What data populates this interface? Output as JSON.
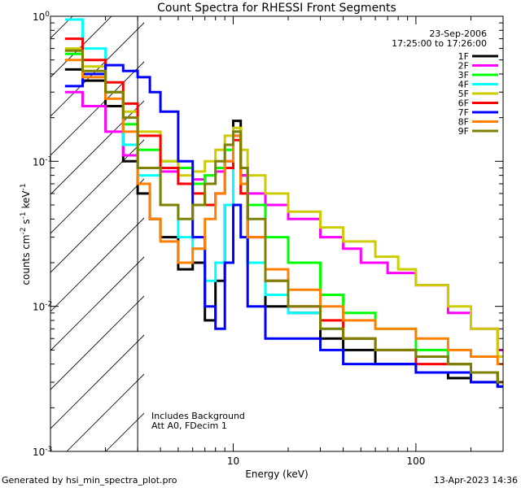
{
  "chart_data": {
    "type": "line",
    "title": "Count Spectra for RHESSI Front Segments",
    "xlabel": "Energy (keV)",
    "ylabel": "counts cm-2 s-1 keV-1",
    "xscale": "log",
    "yscale": "log",
    "xlim": [
      1.0,
      300.0
    ],
    "ylim": [
      0.001,
      1.0
    ],
    "x_ticks": [
      {
        "value": 10,
        "label": "10"
      },
      {
        "value": 100,
        "label": "100"
      }
    ],
    "y_ticks": [
      {
        "value": 1,
        "base": "10",
        "exp": "0"
      },
      {
        "value": 0.1,
        "base": "10",
        "exp": "-1"
      },
      {
        "value": 0.01,
        "base": "10",
        "exp": "-2"
      },
      {
        "value": 0.001,
        "base": "10",
        "exp": "-3"
      }
    ],
    "date": "23-Sep-2006",
    "time_range": "17:25:00 to 17:26:00",
    "annotations": [
      "Includes Background",
      "Att A0, FDecim 1"
    ],
    "shaded_region": {
      "from": 1.0,
      "to": 3.0,
      "style": "diagonal hatching"
    },
    "series": [
      {
        "name": "1F",
        "color": "#000000",
        "points": [
          [
            1.2,
            0.43
          ],
          [
            1.5,
            0.36
          ],
          [
            2,
            0.24
          ],
          [
            2.5,
            0.1
          ],
          [
            3,
            0.06
          ],
          [
            3.5,
            0.04
          ],
          [
            4,
            0.03
          ],
          [
            5,
            0.018
          ],
          [
            6,
            0.02
          ],
          [
            7,
            0.008
          ],
          [
            8,
            0.015
          ],
          [
            9,
            0.05
          ],
          [
            10,
            0.19
          ],
          [
            11,
            0.08
          ],
          [
            12,
            0.02
          ],
          [
            15,
            0.01
          ],
          [
            20,
            0.009
          ],
          [
            30,
            0.006
          ],
          [
            40,
            0.005
          ],
          [
            60,
            0.004
          ],
          [
            80,
            0.004
          ],
          [
            100,
            0.0035
          ],
          [
            150,
            0.0032
          ],
          [
            200,
            0.003
          ],
          [
            280,
            0.0028
          ]
        ]
      },
      {
        "name": "2F",
        "color": "#ff00ff",
        "points": [
          [
            1.2,
            0.3
          ],
          [
            1.5,
            0.24
          ],
          [
            2,
            0.16
          ],
          [
            2.5,
            0.11
          ],
          [
            3,
            0.09
          ],
          [
            4,
            0.085
          ],
          [
            5,
            0.07
          ],
          [
            6,
            0.075
          ],
          [
            7,
            0.08
          ],
          [
            8,
            0.085
          ],
          [
            9,
            0.1
          ],
          [
            10,
            0.15
          ],
          [
            11,
            0.08
          ],
          [
            12,
            0.06
          ],
          [
            15,
            0.05
          ],
          [
            20,
            0.04
          ],
          [
            30,
            0.03
          ],
          [
            40,
            0.025
          ],
          [
            50,
            0.02
          ],
          [
            70,
            0.017
          ],
          [
            100,
            0.014
          ],
          [
            150,
            0.009
          ],
          [
            200,
            0.007
          ],
          [
            280,
            0.005
          ]
        ]
      },
      {
        "name": "3F",
        "color": "#00ff00",
        "points": [
          [
            1.2,
            0.55
          ],
          [
            1.5,
            0.4
          ],
          [
            2,
            0.3
          ],
          [
            2.5,
            0.18
          ],
          [
            3,
            0.12
          ],
          [
            4,
            0.1
          ],
          [
            5,
            0.09
          ],
          [
            6,
            0.07
          ],
          [
            7,
            0.08
          ],
          [
            8,
            0.09
          ],
          [
            9,
            0.12
          ],
          [
            10,
            0.16
          ],
          [
            11,
            0.09
          ],
          [
            12,
            0.05
          ],
          [
            15,
            0.03
          ],
          [
            20,
            0.02
          ],
          [
            30,
            0.012
          ],
          [
            40,
            0.009
          ],
          [
            60,
            0.007
          ],
          [
            100,
            0.005
          ],
          [
            150,
            0.004
          ],
          [
            200,
            0.0035
          ],
          [
            280,
            0.003
          ]
        ]
      },
      {
        "name": "4F",
        "color": "#00ffff",
        "points": [
          [
            1.2,
            0.95
          ],
          [
            1.5,
            0.6
          ],
          [
            2,
            0.3
          ],
          [
            2.5,
            0.13
          ],
          [
            3,
            0.08
          ],
          [
            4,
            0.05
          ],
          [
            5,
            0.03
          ],
          [
            6,
            0.025
          ],
          [
            7,
            0.015
          ],
          [
            8,
            0.02
          ],
          [
            9,
            0.05
          ],
          [
            10,
            0.16
          ],
          [
            11,
            0.06
          ],
          [
            12,
            0.02
          ],
          [
            15,
            0.012
          ],
          [
            20,
            0.009
          ],
          [
            30,
            0.007
          ],
          [
            40,
            0.006
          ],
          [
            60,
            0.005
          ],
          [
            100,
            0.0045
          ],
          [
            150,
            0.004
          ],
          [
            200,
            0.0035
          ],
          [
            280,
            0.003
          ]
        ]
      },
      {
        "name": "5F",
        "color": "#cccc00",
        "points": [
          [
            1.2,
            0.6
          ],
          [
            1.5,
            0.45
          ],
          [
            2,
            0.3
          ],
          [
            2.5,
            0.22
          ],
          [
            3,
            0.16
          ],
          [
            4,
            0.1
          ],
          [
            5,
            0.08
          ],
          [
            6,
            0.085
          ],
          [
            7,
            0.1
          ],
          [
            8,
            0.12
          ],
          [
            9,
            0.15
          ],
          [
            10,
            0.17
          ],
          [
            11,
            0.12
          ],
          [
            12,
            0.08
          ],
          [
            15,
            0.06
          ],
          [
            20,
            0.045
          ],
          [
            30,
            0.035
          ],
          [
            40,
            0.028
          ],
          [
            60,
            0.022
          ],
          [
            80,
            0.018
          ],
          [
            100,
            0.014
          ],
          [
            150,
            0.01
          ],
          [
            200,
            0.007
          ],
          [
            280,
            0.0045
          ]
        ]
      },
      {
        "name": "6F",
        "color": "#ff0000",
        "points": [
          [
            1.2,
            0.7
          ],
          [
            1.5,
            0.5
          ],
          [
            2,
            0.35
          ],
          [
            2.5,
            0.25
          ],
          [
            3,
            0.15
          ],
          [
            4,
            0.09
          ],
          [
            5,
            0.07
          ],
          [
            6,
            0.06
          ],
          [
            7,
            0.05
          ],
          [
            8,
            0.06
          ],
          [
            9,
            0.09
          ],
          [
            10,
            0.14
          ],
          [
            11,
            0.06
          ],
          [
            12,
            0.03
          ],
          [
            15,
            0.015
          ],
          [
            20,
            0.01
          ],
          [
            30,
            0.008
          ],
          [
            40,
            0.006
          ],
          [
            60,
            0.005
          ],
          [
            100,
            0.004
          ],
          [
            150,
            0.004
          ],
          [
            200,
            0.0035
          ],
          [
            280,
            0.003
          ]
        ]
      },
      {
        "name": "7F",
        "color": "#0000ff",
        "points": [
          [
            1.2,
            0.33
          ],
          [
            1.5,
            0.4
          ],
          [
            2,
            0.46
          ],
          [
            2.5,
            0.42
          ],
          [
            3,
            0.38
          ],
          [
            3.5,
            0.3
          ],
          [
            4,
            0.22
          ],
          [
            5,
            0.1
          ],
          [
            6,
            0.03
          ],
          [
            7,
            0.01
          ],
          [
            8,
            0.007
          ],
          [
            9,
            0.02
          ],
          [
            10,
            0.05
          ],
          [
            11,
            0.03
          ],
          [
            12,
            0.01
          ],
          [
            15,
            0.006
          ],
          [
            20,
            0.006
          ],
          [
            30,
            0.005
          ],
          [
            40,
            0.004
          ],
          [
            60,
            0.004
          ],
          [
            100,
            0.0035
          ],
          [
            150,
            0.0035
          ],
          [
            200,
            0.003
          ],
          [
            280,
            0.0028
          ]
        ]
      },
      {
        "name": "8F",
        "color": "#ff8000",
        "points": [
          [
            1.2,
            0.5
          ],
          [
            1.5,
            0.38
          ],
          [
            2,
            0.27
          ],
          [
            2.5,
            0.16
          ],
          [
            3,
            0.07
          ],
          [
            3.5,
            0.04
          ],
          [
            4,
            0.028
          ],
          [
            5,
            0.02
          ],
          [
            6,
            0.025
          ],
          [
            7,
            0.04
          ],
          [
            8,
            0.06
          ],
          [
            9,
            0.1
          ],
          [
            10,
            0.15
          ],
          [
            11,
            0.07
          ],
          [
            12,
            0.03
          ],
          [
            15,
            0.018
          ],
          [
            20,
            0.013
          ],
          [
            30,
            0.01
          ],
          [
            40,
            0.008
          ],
          [
            60,
            0.007
          ],
          [
            100,
            0.006
          ],
          [
            150,
            0.005
          ],
          [
            200,
            0.0045
          ],
          [
            280,
            0.004
          ]
        ]
      },
      {
        "name": "9F",
        "color": "#808000",
        "points": [
          [
            1.2,
            0.58
          ],
          [
            1.5,
            0.42
          ],
          [
            2,
            0.3
          ],
          [
            2.5,
            0.2
          ],
          [
            3,
            0.09
          ],
          [
            4,
            0.05
          ],
          [
            5,
            0.04
          ],
          [
            6,
            0.05
          ],
          [
            7,
            0.07
          ],
          [
            8,
            0.1
          ],
          [
            9,
            0.13
          ],
          [
            10,
            0.16
          ],
          [
            11,
            0.09
          ],
          [
            12,
            0.04
          ],
          [
            15,
            0.015
          ],
          [
            20,
            0.01
          ],
          [
            30,
            0.007
          ],
          [
            40,
            0.006
          ],
          [
            60,
            0.005
          ],
          [
            100,
            0.0045
          ],
          [
            150,
            0.004
          ],
          [
            200,
            0.0035
          ],
          [
            280,
            0.003
          ]
        ]
      }
    ]
  },
  "footer": {
    "left": "Generated by hsi_min_spectra_plot.pro",
    "right": "13-Apr-2023 14:36"
  }
}
